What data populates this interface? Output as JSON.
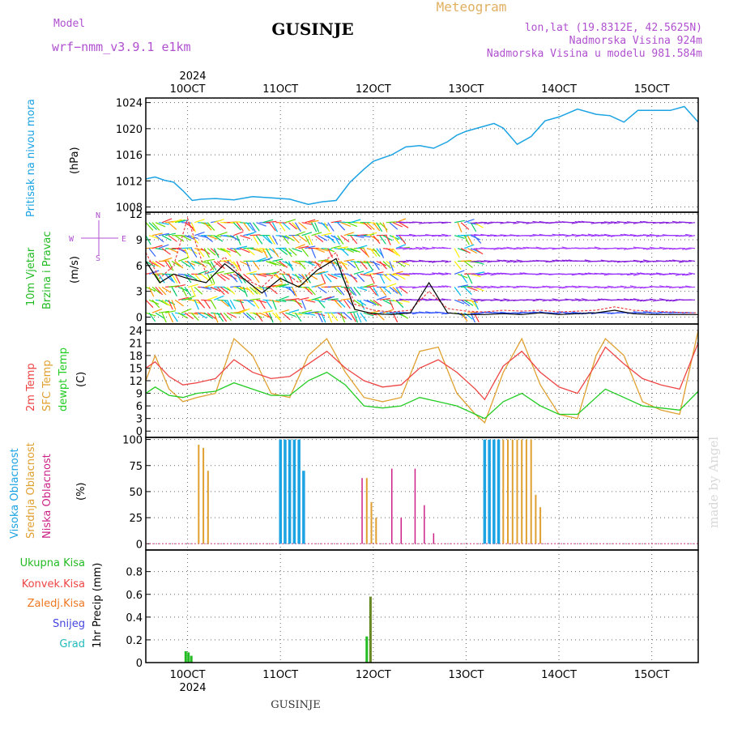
{
  "header": {
    "model_label": "Model",
    "model_name": "wrf−nmm_v3.9.1  e1km",
    "station": "GUSINJE",
    "meteogram": "Meteogram",
    "lonlat": "lon,lat (19.8312E, 42.5625N)",
    "elevation": "Nadmorska Visina 924m",
    "model_elevation": "Nadmorska Visina u modelu 981.584m",
    "footer_station": "GUSINJE",
    "watermark": "made by Angel",
    "year": "2024"
  },
  "colors": {
    "pressure": "#1ba3e3",
    "wind_label": "#22bb22",
    "wind_dir_label": "#b050d0",
    "temp2m": "#ee4444",
    "sfc": "#e0a030",
    "dewpt": "#22cc22",
    "high_cloud": "#1ba3e3",
    "mid_cloud": "#e0a030",
    "low_cloud": "#cc2288",
    "total_precip": "#22bb22",
    "conv_precip": "#ee4444",
    "frz_precip": "#ee7722",
    "snow": "#4444dd",
    "graupel": "#22bbbb",
    "gust": "#ee4444",
    "watermark": "#cccccc"
  },
  "time_axis": {
    "top_labels": [
      "10OCT",
      "11OCT",
      "12OCT",
      "13OCT",
      "14OCT",
      "15OCT"
    ],
    "bottom_labels": [
      "10OCT",
      "11OCT",
      "12OCT",
      "13OCT",
      "14OCT",
      "15OCT"
    ],
    "start_day": 9.55,
    "end_day": 15.5
  },
  "panels": {
    "pressure": {
      "ylabel": "Pritisak na nivou mora",
      "unit": "(hPa)",
      "ticks": [
        1008,
        1012,
        1016,
        1020,
        1024
      ],
      "ylim": [
        1007.2,
        1024.7
      ]
    },
    "wind": {
      "ylabel1": "10m Vjetar",
      "ylabel2": "Brzina i Pravac",
      "unit": "(m/s)",
      "ticks": [
        0,
        3,
        6,
        9,
        12
      ],
      "ylim": [
        -0.8,
        12.2
      ],
      "compass": {
        "w": "W",
        "e": "E",
        "n": "N",
        "s": "S"
      }
    },
    "temp": {
      "ylabel1": "2m Temp",
      "ylabel2": "SFC Temp",
      "ylabel3": "dewpt Temp",
      "unit": "(C)",
      "ticks": [
        0,
        3,
        6,
        9,
        12,
        15,
        18,
        21,
        24
      ],
      "ylim": [
        -1.5,
        25.5
      ]
    },
    "cloud": {
      "ylabel1": "Visoka Oblacnost",
      "ylabel2": "Srednja Oblacnost",
      "ylabel3": "Niska Oblacnost",
      "unit": "(%)",
      "ticks": [
        0,
        25,
        50,
        75,
        100
      ],
      "ylim": [
        -6,
        102
      ]
    },
    "precip": {
      "ylabel_unit": "1hr Precip (mm)",
      "legend": [
        "Ukupna Kisa",
        "Konvek.Kisa",
        "Zaledj.Kisa",
        "Snijeg",
        "Grad"
      ],
      "ticks": [
        0,
        0.2,
        0.4,
        0.6,
        0.8
      ],
      "ylim": [
        0,
        0.99
      ]
    }
  },
  "chart_data": [
    {
      "type": "line",
      "name": "mslp",
      "x": [
        9.55,
        9.65,
        9.75,
        9.85,
        9.95,
        10.05,
        10.15,
        10.3,
        10.5,
        10.7,
        10.9,
        11.1,
        11.3,
        11.45,
        11.6,
        11.75,
        11.9,
        12.0,
        12.1,
        12.2,
        12.35,
        12.5,
        12.65,
        12.8,
        12.9,
        13.0,
        13.1,
        13.2,
        13.3,
        13.4,
        13.55,
        13.7,
        13.85,
        14.0,
        14.2,
        14.4,
        14.55,
        14.7,
        14.85,
        15.0,
        15.2,
        15.35,
        15.5
      ],
      "y": [
        1012.3,
        1012.6,
        1012.1,
        1011.8,
        1010.5,
        1009.0,
        1009.2,
        1009.3,
        1009.1,
        1009.6,
        1009.4,
        1009.2,
        1008.4,
        1008.8,
        1009.0,
        1011.8,
        1013.8,
        1015.0,
        1015.5,
        1016.0,
        1017.2,
        1017.4,
        1017.0,
        1018.0,
        1019.0,
        1019.6,
        1020.0,
        1020.4,
        1020.8,
        1020.1,
        1017.6,
        1018.8,
        1021.2,
        1021.8,
        1023.0,
        1022.2,
        1022.0,
        1021.0,
        1022.8,
        1022.8,
        1022.8,
        1023.4,
        1021.0
      ]
    },
    {
      "type": "line",
      "name": "wind_gust",
      "x": [
        9.55,
        9.7,
        9.85,
        10.0,
        10.2,
        10.4,
        10.6,
        10.8,
        11.0,
        11.2,
        11.4,
        11.6,
        11.8,
        12.0,
        12.2,
        12.4,
        12.6,
        12.8,
        13.0,
        13.2,
        13.4,
        13.6,
        13.8,
        14.0,
        14.2,
        14.4,
        14.6,
        14.8,
        15.0,
        15.2,
        15.4,
        15.5
      ],
      "y": [
        7.5,
        4.5,
        6.0,
        11.5,
        5.0,
        7.0,
        4.5,
        3.5,
        5.5,
        4.0,
        6.0,
        7.5,
        1.5,
        0.8,
        0.6,
        0.8,
        3.0,
        1.0,
        0.7,
        0.6,
        0.8,
        0.7,
        0.8,
        0.6,
        0.7,
        0.8,
        1.2,
        0.8,
        0.7,
        0.6,
        0.5,
        0.5
      ]
    },
    {
      "type": "line",
      "name": "wind_speed",
      "x": [
        9.55,
        9.7,
        9.85,
        10.0,
        10.2,
        10.4,
        10.6,
        10.8,
        11.0,
        11.2,
        11.4,
        11.6,
        11.8,
        12.0,
        12.2,
        12.4,
        12.6,
        12.8,
        13.0,
        13.2,
        13.4,
        13.6,
        13.8,
        14.0,
        14.2,
        14.4,
        14.6,
        14.8,
        15.0,
        15.2,
        15.4,
        15.5
      ],
      "y": [
        6.5,
        4.0,
        5.0,
        4.5,
        4.0,
        6.2,
        4.5,
        2.8,
        4.5,
        3.5,
        5.5,
        6.8,
        0.9,
        0.4,
        0.3,
        0.5,
        4.0,
        0.5,
        0.3,
        0.3,
        0.4,
        0.3,
        0.5,
        0.3,
        0.4,
        0.5,
        0.8,
        0.4,
        0.3,
        0.3,
        0.3,
        0.3
      ]
    },
    {
      "type": "line",
      "name": "temp_2m",
      "x": [
        9.55,
        9.65,
        9.8,
        9.95,
        10.1,
        10.3,
        10.5,
        10.7,
        10.9,
        11.1,
        11.3,
        11.5,
        11.7,
        11.9,
        12.1,
        12.3,
        12.5,
        12.7,
        12.9,
        13.1,
        13.2,
        13.4,
        13.6,
        13.8,
        14.0,
        14.2,
        14.4,
        14.5,
        14.7,
        14.9,
        15.1,
        15.3,
        15.5
      ],
      "y": [
        15,
        16.5,
        13,
        11,
        11.5,
        12.5,
        17,
        14,
        12.5,
        13,
        16,
        19,
        15,
        12,
        10.5,
        11,
        15,
        17,
        14,
        10,
        7.5,
        15.5,
        19,
        14,
        10.5,
        9,
        16,
        20,
        16,
        12.5,
        11,
        10,
        21
      ]
    },
    {
      "type": "line",
      "name": "sfc_temp",
      "x": [
        9.55,
        9.65,
        9.8,
        9.95,
        10.1,
        10.3,
        10.5,
        10.7,
        10.9,
        11.1,
        11.3,
        11.5,
        11.7,
        11.9,
        12.1,
        12.3,
        12.5,
        12.7,
        12.9,
        13.1,
        13.2,
        13.4,
        13.6,
        13.8,
        14.0,
        14.2,
        14.4,
        14.5,
        14.7,
        14.9,
        15.1,
        15.3,
        15.5
      ],
      "y": [
        12,
        18,
        10,
        7,
        8,
        9,
        22,
        18,
        9,
        8,
        18,
        22,
        14,
        8,
        7,
        8,
        19,
        20,
        9,
        4,
        2,
        14,
        22,
        11,
        4,
        3,
        18,
        22,
        18,
        7,
        5,
        4,
        24
      ]
    },
    {
      "type": "line",
      "name": "dewpt_temp",
      "x": [
        9.55,
        9.65,
        9.8,
        9.95,
        10.1,
        10.3,
        10.5,
        10.7,
        10.9,
        11.1,
        11.3,
        11.5,
        11.7,
        11.9,
        12.1,
        12.3,
        12.5,
        12.7,
        12.9,
        13.1,
        13.2,
        13.4,
        13.6,
        13.8,
        14.0,
        14.2,
        14.4,
        14.5,
        14.7,
        14.9,
        15.1,
        15.3,
        15.5
      ],
      "y": [
        9,
        10.5,
        8.5,
        8,
        9,
        9.5,
        11.5,
        10,
        8.5,
        8.5,
        12,
        14,
        11,
        6,
        5.5,
        6,
        8,
        7,
        6,
        4,
        3,
        7,
        9,
        6,
        4,
        4,
        8,
        10,
        8,
        6,
        5.5,
        5,
        9.5
      ]
    },
    {
      "type": "bar",
      "name": "high_cloud",
      "x": [
        11.0,
        11.05,
        11.1,
        11.15,
        11.2,
        11.25,
        13.2,
        13.25,
        13.3,
        13.35
      ],
      "y": [
        100,
        100,
        100,
        100,
        100,
        70,
        100,
        100,
        100,
        100
      ]
    },
    {
      "type": "bar",
      "name": "mid_cloud",
      "x": [
        10.12,
        10.17,
        10.22,
        11.93,
        11.98,
        12.03,
        13.4,
        13.45,
        13.5,
        13.55,
        13.6,
        13.65,
        13.7,
        13.75,
        13.8
      ],
      "y": [
        95,
        92,
        70,
        63,
        40,
        25,
        100,
        100,
        100,
        100,
        100,
        100,
        100,
        47,
        35
      ]
    },
    {
      "type": "bar",
      "name": "low_cloud",
      "x": [
        11.88,
        12.2,
        12.3,
        12.45,
        12.55,
        12.65
      ],
      "y": [
        63,
        72,
        25,
        72,
        37,
        10
      ]
    },
    {
      "type": "bar",
      "name": "total_precip",
      "x": [
        9.98,
        10.01,
        10.04,
        11.93,
        11.97
      ],
      "y": [
        0.1,
        0.09,
        0.06,
        0.23,
        0.58
      ]
    }
  ]
}
